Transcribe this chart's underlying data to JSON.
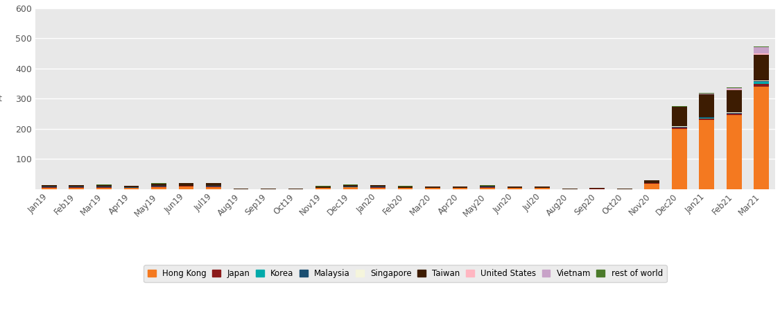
{
  "categories": [
    "Jan19",
    "Feb19",
    "Mar19",
    "Apr19",
    "May19",
    "Jun19",
    "Jul19",
    "Aug19",
    "Sep19",
    "Oct19",
    "Nov19",
    "Dec19",
    "Jan20",
    "Feb20",
    "Mar20",
    "Apr20",
    "May20",
    "Jun20",
    "Jul20",
    "Aug20",
    "Sep20",
    "Oct20",
    "Nov20",
    "Dec20",
    "Jan21",
    "Feb21",
    "Mar21"
  ],
  "series": {
    "Hong Kong": [
      5,
      5,
      4,
      3,
      6,
      8,
      7,
      0,
      0,
      0,
      3,
      6,
      5,
      3,
      3,
      3,
      5,
      3,
      3,
      0,
      0,
      0,
      18,
      200,
      230,
      245,
      340
    ],
    "Japan": [
      1,
      1,
      2,
      1,
      2,
      2,
      2,
      0,
      0,
      0,
      1,
      1,
      1,
      1,
      1,
      1,
      1,
      1,
      1,
      0,
      1,
      0,
      2,
      5,
      4,
      4,
      8
    ],
    "Korea": [
      0,
      0,
      0,
      0,
      0,
      0,
      0,
      0,
      0,
      0,
      0,
      0,
      0,
      0,
      0,
      0,
      0,
      0,
      0,
      0,
      0,
      0,
      0,
      0,
      2,
      2,
      8
    ],
    "Malaysia": [
      2,
      2,
      2,
      2,
      2,
      2,
      2,
      0,
      0,
      0,
      1,
      2,
      2,
      1,
      1,
      1,
      2,
      1,
      1,
      0,
      0,
      0,
      1,
      2,
      2,
      2,
      3
    ],
    "Singapore": [
      0,
      0,
      0,
      0,
      0,
      0,
      0,
      0,
      0,
      0,
      0,
      0,
      0,
      0,
      0,
      0,
      0,
      0,
      0,
      0,
      0,
      0,
      0,
      1,
      1,
      1,
      1
    ],
    "Taiwan": [
      5,
      5,
      6,
      5,
      8,
      8,
      8,
      2,
      1,
      2,
      4,
      5,
      5,
      4,
      3,
      3,
      4,
      3,
      3,
      2,
      2,
      2,
      8,
      65,
      75,
      75,
      85
    ],
    "United States": [
      0,
      0,
      0,
      0,
      0,
      0,
      0,
      0,
      0,
      0,
      0,
      0,
      0,
      0,
      0,
      0,
      0,
      0,
      0,
      0,
      0,
      0,
      0,
      1,
      1,
      2,
      5
    ],
    "Vietnam": [
      0,
      0,
      0,
      0,
      0,
      0,
      0,
      0,
      0,
      0,
      0,
      0,
      0,
      0,
      0,
      0,
      0,
      0,
      0,
      0,
      0,
      0,
      0,
      0,
      2,
      5,
      20
    ],
    "rest of world": [
      1,
      1,
      1,
      1,
      1,
      1,
      1,
      0,
      0,
      0,
      1,
      1,
      1,
      1,
      1,
      1,
      1,
      1,
      1,
      0,
      0,
      0,
      1,
      2,
      2,
      2,
      3
    ]
  },
  "colors": {
    "Hong Kong": "#F47920",
    "Japan": "#8B1A1A",
    "Korea": "#00AAAA",
    "Malaysia": "#1B4F72",
    "Singapore": "#F5F5DC",
    "Taiwan": "#3D1C02",
    "United States": "#FFB6C1",
    "Vietnam": "#C8A2C8",
    "rest of world": "#4B7A2A"
  },
  "ylim": [
    0,
    600
  ],
  "yticks": [
    100,
    200,
    300,
    400,
    500,
    600
  ],
  "ylabel": "t",
  "background_color": "#E8E8E8",
  "grid_color": "#FFFFFF",
  "bar_width": 0.55
}
